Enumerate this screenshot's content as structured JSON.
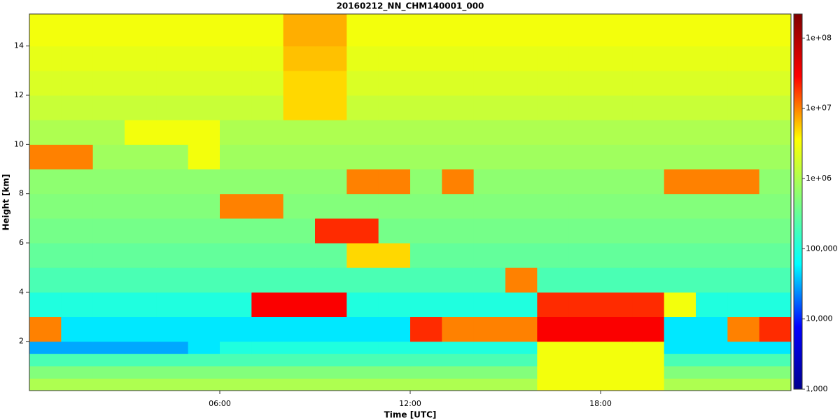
{
  "chart_data": {
    "type": "heatmap",
    "title": "20160212_NN_CHM140001_000",
    "xlabel": "Time [UTC]",
    "ylabel": "Height [km]",
    "xlim": [
      0,
      24
    ],
    "xticks": [
      {
        "value": 6,
        "label": "06:00"
      },
      {
        "value": 12,
        "label": "12:00"
      },
      {
        "value": 18,
        "label": "18:00"
      }
    ],
    "ylim": [
      0,
      15.3
    ],
    "yticks": [
      2,
      4,
      6,
      8,
      10,
      12,
      14
    ],
    "xbins": [
      0,
      1,
      2,
      3,
      4,
      5,
      6,
      7,
      8,
      9,
      10,
      11,
      12,
      13,
      14,
      15,
      16,
      17,
      18,
      19,
      20,
      21,
      22,
      23,
      24
    ],
    "ybins": [
      0,
      0.5,
      1,
      1.5,
      2,
      3,
      4,
      5,
      6,
      7,
      8,
      9,
      10,
      11,
      12,
      13,
      14,
      15.3
    ],
    "colorbar": {
      "log": true,
      "lim": [
        1000,
        220000000
      ],
      "ticks": [
        {
          "value": 1000,
          "label": "1,000"
        },
        {
          "value": 10000,
          "label": "10,000"
        },
        {
          "value": 100000,
          "label": "100,000"
        },
        {
          "value": 1000000,
          "label": "1e+06"
        },
        {
          "value": 10000000,
          "label": "1e+07"
        },
        {
          "value": 100000000,
          "label": "1e+08"
        }
      ]
    },
    "colormap": [
      "#00008f",
      "#0000ff",
      "#00ffff",
      "#7fff7f",
      "#ffff00",
      "#ff0000",
      "#800000"
    ],
    "z": [
      [
        1000000.0,
        1000000.0,
        1000000.0,
        1000000.0,
        1000000.0,
        1000000.0,
        1000000.0,
        1000000.0,
        1000000.0,
        1000000.0,
        1000000.0,
        1000000.0,
        1000000.0,
        1000000.0,
        1000000.0,
        1000000.0,
        3000000.0,
        3000000.0,
        3000000.0,
        3000000.0,
        1000000.0,
        1000000.0,
        1000000.0,
        1000000.0
      ],
      [
        500000.0,
        500000.0,
        500000.0,
        500000.0,
        500000.0,
        500000.0,
        500000.0,
        500000.0,
        500000.0,
        500000.0,
        500000.0,
        500000.0,
        500000.0,
        500000.0,
        500000.0,
        500000.0,
        3000000.0,
        3000000.0,
        3000000.0,
        3000000.0,
        500000.0,
        500000.0,
        500000.0,
        500000.0
      ],
      [
        200000.0,
        200000.0,
        200000.0,
        200000.0,
        200000.0,
        200000.0,
        200000.0,
        200000.0,
        200000.0,
        200000.0,
        200000.0,
        200000.0,
        200000.0,
        200000.0,
        200000.0,
        200000.0,
        3000000.0,
        3000000.0,
        3000000.0,
        3000000.0,
        200000.0,
        200000.0,
        200000.0,
        200000.0
      ],
      [
        30000.0,
        30000.0,
        30000.0,
        30000.0,
        30000.0,
        50000.0,
        100000.0,
        100000.0,
        100000.0,
        100000.0,
        100000.0,
        100000.0,
        100000.0,
        100000.0,
        100000.0,
        100000.0,
        3000000.0,
        3000000.0,
        3000000.0,
        3000000.0,
        50000.0,
        50000.0,
        50000.0,
        50000.0
      ],
      [
        10000000.0,
        50000.0,
        50000.0,
        50000.0,
        50000.0,
        50000.0,
        50000.0,
        50000.0,
        50000.0,
        50000.0,
        50000.0,
        50000.0,
        20000000.0,
        10000000.0,
        10000000.0,
        10000000.0,
        30000000.0,
        30000000.0,
        30000000.0,
        30000000.0,
        50000.0,
        50000.0,
        10000000.0,
        20000000.0
      ],
      [
        100000.0,
        100000.0,
        100000.0,
        100000.0,
        100000.0,
        100000.0,
        100000.0,
        30000000.0,
        30000000.0,
        30000000.0,
        100000.0,
        100000.0,
        100000.0,
        100000.0,
        100000.0,
        100000.0,
        20000000.0,
        20000000.0,
        20000000.0,
        20000000.0,
        3000000.0,
        100000.0,
        100000.0,
        100000.0
      ],
      [
        200000.0,
        200000.0,
        200000.0,
        200000.0,
        200000.0,
        200000.0,
        200000.0,
        200000.0,
        200000.0,
        200000.0,
        200000.0,
        200000.0,
        200000.0,
        200000.0,
        200000.0,
        10000000.0,
        200000.0,
        200000.0,
        200000.0,
        200000.0,
        200000.0,
        200000.0,
        200000.0,
        200000.0
      ],
      [
        300000.0,
        300000.0,
        300000.0,
        300000.0,
        300000.0,
        300000.0,
        300000.0,
        300000.0,
        300000.0,
        300000.0,
        5000000.0,
        5000000.0,
        300000.0,
        300000.0,
        300000.0,
        300000.0,
        300000.0,
        300000.0,
        300000.0,
        300000.0,
        300000.0,
        300000.0,
        300000.0,
        300000.0
      ],
      [
        400000.0,
        400000.0,
        400000.0,
        400000.0,
        400000.0,
        400000.0,
        400000.0,
        400000.0,
        400000.0,
        20000000.0,
        20000000.0,
        400000.0,
        400000.0,
        400000.0,
        400000.0,
        400000.0,
        400000.0,
        400000.0,
        400000.0,
        400000.0,
        400000.0,
        400000.0,
        400000.0,
        400000.0
      ],
      [
        500000.0,
        500000.0,
        500000.0,
        500000.0,
        500000.0,
        500000.0,
        10000000.0,
        10000000.0,
        500000.0,
        500000.0,
        500000.0,
        500000.0,
        500000.0,
        500000.0,
        500000.0,
        500000.0,
        500000.0,
        500000.0,
        500000.0,
        500000.0,
        500000.0,
        500000.0,
        500000.0,
        500000.0
      ],
      [
        600000.0,
        600000.0,
        600000.0,
        600000.0,
        600000.0,
        600000.0,
        600000.0,
        600000.0,
        600000.0,
        600000.0,
        10000000.0,
        10000000.0,
        600000.0,
        10000000.0,
        600000.0,
        600000.0,
        600000.0,
        600000.0,
        600000.0,
        600000.0,
        10000000.0,
        10000000.0,
        10000000.0,
        600000.0
      ],
      [
        10000000.0,
        10000000.0,
        800000.0,
        800000.0,
        800000.0,
        3000000.0,
        800000.0,
        800000.0,
        800000.0,
        800000.0,
        800000.0,
        800000.0,
        800000.0,
        800000.0,
        800000.0,
        800000.0,
        800000.0,
        800000.0,
        800000.0,
        800000.0,
        800000.0,
        800000.0,
        800000.0,
        800000.0
      ],
      [
        1000000.0,
        1000000.0,
        1000000.0,
        3000000.0,
        3000000.0,
        3000000.0,
        1000000.0,
        1000000.0,
        1000000.0,
        1000000.0,
        1000000.0,
        1000000.0,
        1000000.0,
        1000000.0,
        1000000.0,
        1000000.0,
        1000000.0,
        1000000.0,
        1000000.0,
        1000000.0,
        1000000.0,
        1000000.0,
        1000000.0,
        1000000.0
      ],
      [
        1500000.0,
        1500000.0,
        1500000.0,
        1500000.0,
        1500000.0,
        1500000.0,
        1500000.0,
        1500000.0,
        5000000.0,
        5000000.0,
        1500000.0,
        1500000.0,
        1500000.0,
        1500000.0,
        1500000.0,
        1500000.0,
        1500000.0,
        1500000.0,
        1500000.0,
        1500000.0,
        1500000.0,
        1500000.0,
        1500000.0,
        1500000.0
      ],
      [
        2000000.0,
        2000000.0,
        2000000.0,
        2000000.0,
        2000000.0,
        2000000.0,
        2000000.0,
        2000000.0,
        5000000.0,
        5000000.0,
        2000000.0,
        2000000.0,
        2000000.0,
        2000000.0,
        2000000.0,
        2000000.0,
        2000000.0,
        2000000.0,
        2000000.0,
        2000000.0,
        2000000.0,
        2000000.0,
        2000000.0,
        2000000.0
      ],
      [
        2500000.0,
        2500000.0,
        2500000.0,
        2500000.0,
        2500000.0,
        2500000.0,
        2500000.0,
        2500000.0,
        6000000.0,
        6000000.0,
        2500000.0,
        2500000.0,
        2500000.0,
        2500000.0,
        2500000.0,
        2500000.0,
        2500000.0,
        2500000.0,
        2500000.0,
        2500000.0,
        2500000.0,
        2500000.0,
        2500000.0,
        2500000.0
      ],
      [
        3000000.0,
        3000000.0,
        3000000.0,
        3000000.0,
        3000000.0,
        3000000.0,
        3000000.0,
        3000000.0,
        7000000.0,
        7000000.0,
        3000000.0,
        3000000.0,
        3000000.0,
        3000000.0,
        3000000.0,
        3000000.0,
        3000000.0,
        3000000.0,
        3000000.0,
        3000000.0,
        3000000.0,
        3000000.0,
        3000000.0,
        3000000.0
      ]
    ]
  }
}
